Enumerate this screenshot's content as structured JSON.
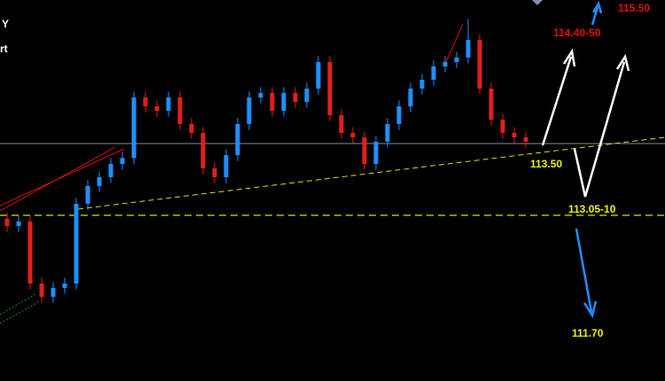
{
  "chart_data": {
    "type": "candlestick",
    "title_parts": [
      "Y",
      "rt"
    ],
    "annotations": [
      {
        "text": "115.50",
        "color": "#e01010"
      },
      {
        "text": "114.40-50",
        "color": "#e01010"
      },
      {
        "text": "113.50",
        "color": "#f0f000"
      },
      {
        "text": "113.05-10",
        "color": "#f0f000"
      },
      {
        "text": "111.70",
        "color": "#f0f000"
      }
    ],
    "ylim": [
      111.95,
      114.53
    ],
    "up_color": "#1e90ff",
    "down_color": "#e0201a",
    "candles": [
      [
        113.05,
        113.09,
        112.96,
        113.0
      ],
      [
        113.0,
        113.07,
        112.96,
        113.03
      ],
      [
        113.03,
        113.07,
        112.57,
        112.61
      ],
      [
        112.61,
        112.65,
        112.48,
        112.52
      ],
      [
        112.52,
        112.62,
        112.48,
        112.58
      ],
      [
        112.58,
        112.65,
        112.54,
        112.61
      ],
      [
        112.61,
        113.19,
        112.57,
        113.15
      ],
      [
        113.15,
        113.31,
        113.11,
        113.27
      ],
      [
        113.27,
        113.37,
        113.23,
        113.33
      ],
      [
        113.33,
        113.46,
        113.29,
        113.42
      ],
      [
        113.42,
        113.5,
        113.38,
        113.46
      ],
      [
        113.46,
        113.91,
        113.42,
        113.87
      ],
      [
        113.87,
        113.91,
        113.77,
        113.81
      ],
      [
        113.81,
        113.85,
        113.74,
        113.78
      ],
      [
        113.78,
        113.91,
        113.74,
        113.87
      ],
      [
        113.87,
        113.91,
        113.65,
        113.69
      ],
      [
        113.69,
        113.73,
        113.59,
        113.63
      ],
      [
        113.63,
        113.67,
        113.35,
        113.39
      ],
      [
        113.39,
        113.43,
        113.29,
        113.33
      ],
      [
        113.33,
        113.52,
        113.29,
        113.48
      ],
      [
        113.48,
        113.73,
        113.44,
        113.69
      ],
      [
        113.69,
        113.91,
        113.65,
        113.87
      ],
      [
        113.87,
        113.94,
        113.83,
        113.9
      ],
      [
        113.9,
        113.94,
        113.74,
        113.78
      ],
      [
        113.78,
        113.94,
        113.74,
        113.9
      ],
      [
        113.9,
        113.94,
        113.8,
        113.84
      ],
      [
        113.84,
        113.97,
        113.8,
        113.93
      ],
      [
        113.93,
        114.15,
        113.89,
        114.11
      ],
      [
        114.11,
        114.15,
        113.71,
        113.75
      ],
      [
        113.75,
        113.79,
        113.59,
        113.63
      ],
      [
        113.63,
        113.67,
        113.56,
        113.6
      ],
      [
        113.6,
        113.64,
        113.38,
        113.42
      ],
      [
        113.42,
        113.61,
        113.38,
        113.57
      ],
      [
        113.57,
        113.73,
        113.53,
        113.69
      ],
      [
        113.69,
        113.85,
        113.65,
        113.81
      ],
      [
        113.81,
        113.97,
        113.77,
        113.93
      ],
      [
        113.93,
        114.03,
        113.89,
        113.99
      ],
      [
        113.99,
        114.12,
        113.95,
        114.08
      ],
      [
        114.08,
        114.15,
        114.04,
        114.11
      ],
      [
        114.11,
        114.18,
        114.07,
        114.14
      ],
      [
        114.14,
        114.4,
        114.1,
        114.26
      ],
      [
        114.26,
        114.3,
        113.89,
        113.93
      ],
      [
        113.93,
        113.97,
        113.68,
        113.72
      ],
      [
        113.72,
        113.76,
        113.59,
        113.63
      ],
      [
        113.63,
        113.67,
        113.56,
        113.6
      ],
      [
        113.6,
        113.64,
        113.53,
        113.57
      ]
    ]
  }
}
